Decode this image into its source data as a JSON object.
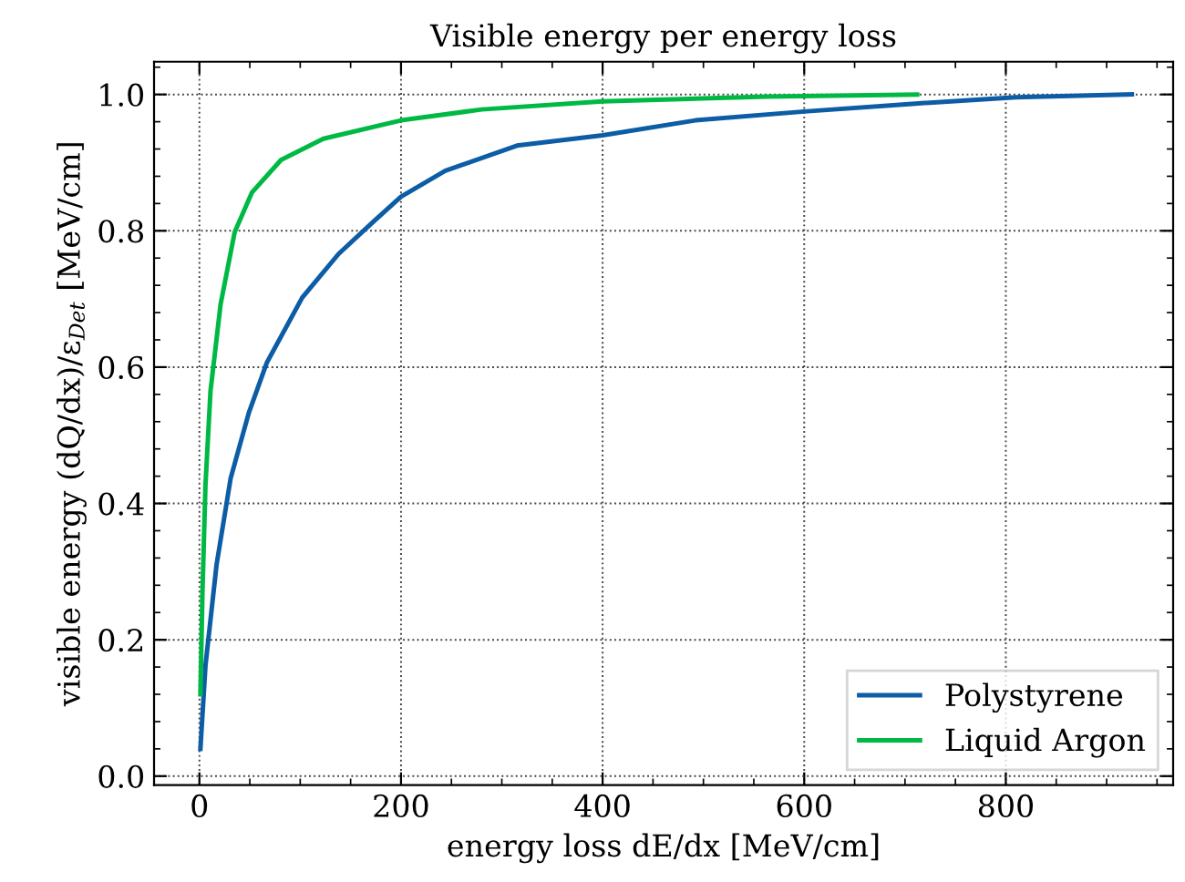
{
  "chart_data": {
    "type": "line",
    "title": "Visible energy per energy loss",
    "xlabel": "energy loss dE/dx [MeV/cm]",
    "ylabel": "visible energy (dQ/dx)/ε$_{Det}$ [MeV/cm]",
    "xlim": [
      -45,
      966
    ],
    "ylim": [
      -0.013,
      1.048
    ],
    "xticks": [
      0,
      200,
      400,
      600,
      800
    ],
    "yticks": [
      {
        "value": 0,
        "label": "0.0"
      },
      0.2,
      0.4,
      0.6,
      0.8,
      {
        "value": 1,
        "label": "1.0"
      }
    ],
    "grid": true,
    "legend": "bottom right",
    "line_style": "solid",
    "marker": "none",
    "series": [
      {
        "name": "Polystyrene",
        "color": "#0c5da5",
        "x": [
          1,
          6,
          17,
          31,
          49,
          67,
          102,
          138,
          173,
          200,
          244,
          315,
          400,
          492,
          600,
          704,
          810,
          925
        ],
        "values": [
          0.04,
          0.162,
          0.31,
          0.437,
          0.533,
          0.607,
          0.702,
          0.766,
          0.814,
          0.85,
          0.888,
          0.925,
          0.94,
          0.962,
          0.975,
          0.986,
          0.996,
          1.0
        ]
      },
      {
        "name": "Liquid Argon",
        "color": "#00b945",
        "x": [
          1,
          3,
          6,
          11,
          21,
          35,
          52,
          81,
          123,
          200,
          280,
          400,
          563,
          712
        ],
        "values": [
          0.12,
          0.268,
          0.427,
          0.565,
          0.692,
          0.798,
          0.856,
          0.904,
          0.935,
          0.962,
          0.978,
          0.99,
          0.997,
          1.0
        ]
      }
    ]
  }
}
